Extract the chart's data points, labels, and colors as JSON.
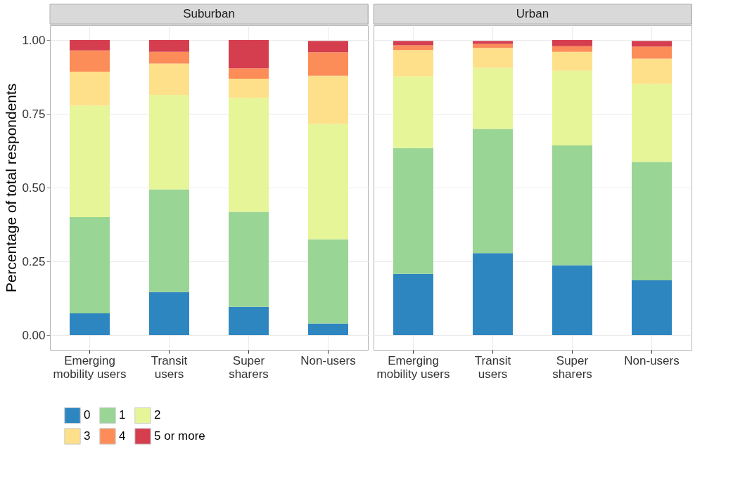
{
  "chart_data": [
    {
      "type": "bar",
      "stacked": true,
      "title": "Suburban",
      "ylabel": "Percentage of total respondents",
      "categories": [
        "Emerging\nmobility users",
        "Transit\nusers",
        "Super\nsharers",
        "Non-users"
      ],
      "ylim": [
        -0.05,
        1.05
      ],
      "yticks": [
        {
          "value": 0,
          "label": "0.00"
        },
        {
          "value": 0.25,
          "label": "0.25"
        },
        {
          "value": 0.5,
          "label": "0.50"
        },
        {
          "value": 0.75,
          "label": "0.75"
        },
        {
          "value": 1,
          "label": "1.00"
        }
      ],
      "grid": true,
      "legend": "bottom",
      "series": [
        {
          "name": "0",
          "color": "#2e86c1",
          "values": [
            0.074,
            0.146,
            0.096,
            0.039
          ]
        },
        {
          "name": "1",
          "color": "#99d594",
          "values": [
            0.326,
            0.348,
            0.322,
            0.286
          ]
        },
        {
          "name": "2",
          "color": "#e6f598",
          "values": [
            0.378,
            0.32,
            0.386,
            0.391
          ]
        },
        {
          "name": "3",
          "color": "#fee08b",
          "values": [
            0.115,
            0.106,
            0.065,
            0.163
          ]
        },
        {
          "name": "4",
          "color": "#fc8d59",
          "values": [
            0.072,
            0.04,
            0.035,
            0.08
          ]
        },
        {
          "name": "5 or more",
          "color": "#d53e4f",
          "values": [
            0.035,
            0.04,
            0.096,
            0.038
          ]
        }
      ]
    },
    {
      "type": "bar",
      "stacked": true,
      "title": "Urban",
      "categories": [
        "Emerging\nmobility users",
        "Transit\nusers",
        "Super\nsharers",
        "Non-users"
      ],
      "ylim": [
        -0.05,
        1.05
      ],
      "yticks": [
        0,
        0.25,
        0.5,
        0.75,
        1
      ],
      "grid": true,
      "tick_labels": "x",
      "series": [
        {
          "name": "0",
          "color": "#2e86c1",
          "values": [
            0.208,
            0.278,
            0.237,
            0.186
          ]
        },
        {
          "name": "1",
          "color": "#99d594",
          "values": [
            0.426,
            0.421,
            0.406,
            0.401
          ]
        },
        {
          "name": "2",
          "color": "#e6f598",
          "values": [
            0.243,
            0.207,
            0.253,
            0.265
          ]
        },
        {
          "name": "3",
          "color": "#fee08b",
          "values": [
            0.089,
            0.067,
            0.064,
            0.085
          ]
        },
        {
          "name": "4",
          "color": "#fc8d59",
          "values": [
            0.016,
            0.014,
            0.019,
            0.041
          ]
        },
        {
          "name": "5 or more",
          "color": "#d53e4f",
          "values": [
            0.015,
            0.01,
            0.021,
            0.019
          ]
        }
      ]
    }
  ]
}
